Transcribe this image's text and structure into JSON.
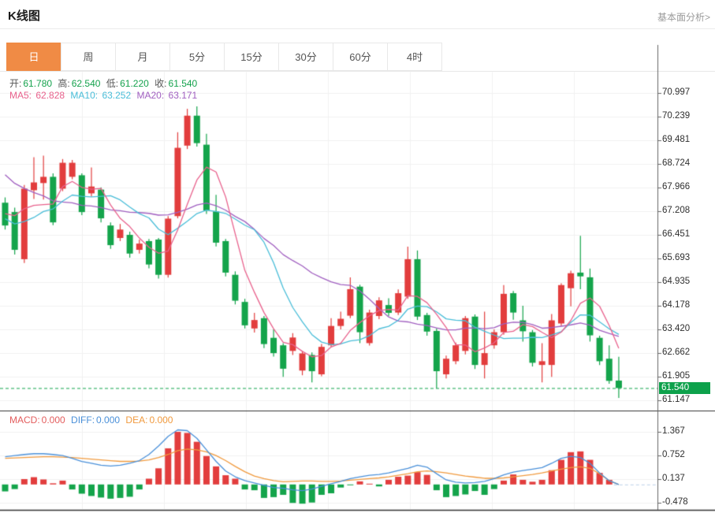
{
  "header": {
    "title": "K线图",
    "link": "基本面分析>"
  },
  "tabs": [
    {
      "label": "日",
      "active": true
    },
    {
      "label": "周",
      "active": false
    },
    {
      "label": "月",
      "active": false
    },
    {
      "label": "5分",
      "active": false
    },
    {
      "label": "15分",
      "active": false
    },
    {
      "label": "30分",
      "active": false
    },
    {
      "label": "60分",
      "active": false
    },
    {
      "label": "4时",
      "active": false
    }
  ],
  "ohlc": {
    "open_label": "开:",
    "open": "61.780",
    "high_label": "高:",
    "high": "62.540",
    "low_label": "低:",
    "low": "61.220",
    "close_label": "收:",
    "close": "61.540"
  },
  "ma_header": {
    "ma5_label": "MA5:",
    "ma5": "62.828",
    "ma10_label": "MA10:",
    "ma10": "63.252",
    "ma20_label": "MA20:",
    "ma20": "63.171"
  },
  "macd_header": {
    "macd_label": "MACD:",
    "macd": "0.000",
    "diff_label": "DIFF:",
    "diff": "0.000",
    "dea_label": "DEA:",
    "dea": "0.000"
  },
  "price_tag": "61.540",
  "colors": {
    "up": "#e23d3d",
    "down": "#14a44b",
    "tab_active_bg": "#f08b45",
    "ma5": "#e8618c",
    "ma10": "#49bdd8",
    "ma20": "#a05fc0",
    "diff_line": "#4a90d9",
    "dea_line": "#f09a3e",
    "macd_label": "#e35d5d",
    "value_green": "#15a24d",
    "label_gray": "#555555",
    "price_tag_bg": "#0da14b",
    "dashed_price_line": "#11a44d",
    "grid": "#f0f0f0",
    "border_light": "#e8e8e8",
    "border_dark": "#333333",
    "axis_line": "#666666",
    "zero_dash": "#b9d0e8"
  },
  "chart_data": [
    {
      "type": "candlestick",
      "title": "K线图 (daily)",
      "note": "candles are [open, close, low, high]; red=up green=down (CN convention)",
      "y_ticks": [
        "70.997",
        "70.239",
        "69.481",
        "68.724",
        "67.966",
        "67.208",
        "66.451",
        "65.693",
        "64.935",
        "64.178",
        "63.420",
        "62.662",
        "61.905",
        "61.147"
      ],
      "current_price": 61.54,
      "current_price_label": "61.540",
      "ma_periods": [
        5,
        10,
        20
      ],
      "ma_warmup": [
        71.5,
        71.2,
        70.8,
        70.4,
        70.0,
        69.6,
        69.2,
        68.8,
        68.4,
        68.0,
        67.6,
        67.2,
        66.8,
        66.4,
        66.0,
        66.3,
        66.8,
        67.6,
        68.2
      ],
      "candles": [
        [
          67.48,
          66.75,
          66.62,
          67.65
        ],
        [
          67.18,
          65.97,
          65.82,
          67.32
        ],
        [
          65.67,
          67.93,
          65.55,
          68.05
        ],
        [
          67.88,
          68.13,
          67.6,
          68.94
        ],
        [
          68.11,
          68.31,
          67.58,
          68.99
        ],
        [
          68.31,
          66.85,
          66.76,
          68.42
        ],
        [
          67.93,
          68.76,
          67.85,
          68.88
        ],
        [
          68.31,
          68.76,
          68.23,
          68.85
        ],
        [
          68.36,
          67.18,
          67.08,
          68.42
        ],
        [
          67.78,
          68.0,
          67.68,
          68.61
        ],
        [
          67.9,
          66.98,
          66.85,
          67.97
        ],
        [
          66.75,
          66.12,
          66.0,
          66.85
        ],
        [
          66.35,
          66.62,
          66.25,
          66.8
        ],
        [
          66.45,
          65.85,
          65.72,
          66.55
        ],
        [
          65.97,
          66.17,
          65.85,
          66.3
        ],
        [
          66.25,
          65.5,
          65.38,
          66.32
        ],
        [
          66.3,
          65.17,
          65.05,
          66.35
        ],
        [
          65.17,
          66.97,
          65.08,
          67.05
        ],
        [
          67.05,
          69.24,
          66.98,
          69.74
        ],
        [
          69.31,
          70.27,
          69.2,
          70.49
        ],
        [
          70.27,
          69.39,
          69.28,
          70.57
        ],
        [
          69.34,
          67.23,
          67.12,
          69.69
        ],
        [
          67.2,
          66.2,
          66.08,
          67.73
        ],
        [
          66.25,
          65.24,
          65.12,
          66.32
        ],
        [
          65.17,
          64.34,
          64.22,
          65.28
        ],
        [
          64.3,
          63.55,
          63.45,
          64.4
        ],
        [
          63.45,
          63.72,
          63.32,
          63.95
        ],
        [
          63.78,
          62.95,
          62.82,
          63.85
        ],
        [
          63.15,
          62.66,
          62.55,
          63.42
        ],
        [
          62.91,
          62.16,
          61.9,
          62.98
        ],
        [
          62.73,
          63.16,
          62.6,
          63.3
        ],
        [
          62.1,
          62.65,
          61.95,
          62.72
        ],
        [
          62.6,
          62.08,
          61.72,
          62.68
        ],
        [
          61.98,
          62.86,
          61.92,
          62.95
        ],
        [
          62.91,
          63.53,
          62.85,
          63.78
        ],
        [
          63.53,
          63.76,
          63.42,
          63.99
        ],
        [
          63.86,
          64.71,
          63.78,
          65.09
        ],
        [
          64.79,
          63.33,
          62.98,
          64.85
        ],
        [
          62.98,
          63.96,
          62.9,
          64.05
        ],
        [
          63.85,
          64.35,
          63.75,
          64.45
        ],
        [
          64.2,
          63.95,
          63.85,
          64.42
        ],
        [
          63.96,
          64.58,
          63.88,
          64.7
        ],
        [
          64.47,
          65.67,
          64.4,
          66.07
        ],
        [
          65.67,
          63.83,
          63.72,
          65.95
        ],
        [
          63.88,
          63.35,
          63.22,
          63.95
        ],
        [
          63.37,
          62.08,
          61.53,
          63.45
        ],
        [
          61.98,
          62.48,
          61.85,
          62.58
        ],
        [
          62.4,
          62.91,
          62.3,
          63.0
        ],
        [
          62.73,
          63.78,
          62.62,
          63.85
        ],
        [
          63.83,
          62.28,
          62.15,
          63.9
        ],
        [
          62.28,
          62.66,
          61.85,
          63.99
        ],
        [
          62.91,
          63.33,
          62.8,
          63.42
        ],
        [
          63.33,
          64.56,
          63.25,
          64.84
        ],
        [
          64.58,
          63.96,
          63.73,
          64.65
        ],
        [
          63.71,
          63.36,
          63.03,
          64.18
        ],
        [
          63.33,
          62.35,
          62.23,
          63.4
        ],
        [
          62.28,
          62.4,
          61.72,
          62.98
        ],
        [
          62.28,
          63.71,
          61.9,
          63.91
        ],
        [
          63.61,
          64.84,
          63.52,
          64.9
        ],
        [
          64.74,
          65.22,
          64.16,
          65.3
        ],
        [
          65.24,
          65.12,
          64.71,
          66.42
        ],
        [
          65.09,
          63.23,
          63.03,
          65.37
        ],
        [
          63.15,
          62.4,
          62.28,
          63.22
        ],
        [
          62.48,
          61.77,
          61.68,
          62.91
        ],
        [
          61.78,
          61.54,
          61.22,
          62.54
        ]
      ]
    },
    {
      "type": "bar",
      "title": "MACD(12,26,9)",
      "y_ticks": [
        "1.367",
        "0.752",
        "0.137",
        "-0.478"
      ],
      "hist": [
        -0.18,
        -0.12,
        0.14,
        0.19,
        0.13,
        0.03,
        0.1,
        -0.13,
        -0.24,
        -0.3,
        -0.34,
        -0.37,
        -0.35,
        -0.32,
        -0.13,
        0.15,
        0.42,
        0.94,
        1.37,
        1.34,
        1.11,
        0.74,
        0.47,
        0.24,
        0.15,
        -0.13,
        -0.15,
        -0.35,
        -0.33,
        -0.27,
        -0.48,
        -0.5,
        -0.47,
        -0.27,
        -0.23,
        -0.08,
        -0.02,
        0.08,
        0.02,
        -0.05,
        0.12,
        0.2,
        0.23,
        0.32,
        0.25,
        -0.15,
        -0.33,
        -0.3,
        -0.26,
        -0.17,
        -0.27,
        -0.12,
        0.1,
        0.26,
        0.12,
        0.07,
        0.12,
        0.37,
        0.64,
        0.84,
        0.86,
        0.64,
        0.3,
        0.12,
        0.0
      ],
      "series": [
        {
          "name": "DIFF",
          "values": [
            0.72,
            0.75,
            0.78,
            0.8,
            0.8,
            0.78,
            0.75,
            0.68,
            0.6,
            0.55,
            0.5,
            0.48,
            0.5,
            0.55,
            0.62,
            0.78,
            1.0,
            1.25,
            1.42,
            1.4,
            1.2,
            0.9,
            0.6,
            0.35,
            0.2,
            0.1,
            0.04,
            -0.02,
            -0.08,
            -0.1,
            -0.14,
            -0.16,
            -0.12,
            -0.05,
            0.02,
            0.08,
            0.15,
            0.2,
            0.24,
            0.26,
            0.3,
            0.36,
            0.42,
            0.5,
            0.45,
            0.28,
            0.12,
            0.06,
            0.04,
            0.05,
            0.08,
            0.15,
            0.25,
            0.32,
            0.36,
            0.4,
            0.44,
            0.55,
            0.68,
            0.73,
            0.7,
            0.55,
            0.3,
            0.1,
            0.0
          ]
        },
        {
          "name": "DEA",
          "values": [
            0.68,
            0.69,
            0.7,
            0.71,
            0.72,
            0.72,
            0.71,
            0.7,
            0.68,
            0.66,
            0.64,
            0.62,
            0.6,
            0.6,
            0.61,
            0.64,
            0.7,
            0.78,
            0.88,
            0.92,
            0.9,
            0.85,
            0.75,
            0.62,
            0.47,
            0.33,
            0.22,
            0.15,
            0.1,
            0.07,
            0.08,
            0.09,
            0.09,
            0.08,
            0.08,
            0.09,
            0.11,
            0.13,
            0.15,
            0.17,
            0.2,
            0.24,
            0.28,
            0.33,
            0.35,
            0.33,
            0.3,
            0.26,
            0.22,
            0.19,
            0.16,
            0.16,
            0.17,
            0.2,
            0.23,
            0.26,
            0.3,
            0.35,
            0.4,
            0.44,
            0.46,
            0.42,
            0.28,
            0.1,
            0.0
          ]
        }
      ]
    }
  ]
}
